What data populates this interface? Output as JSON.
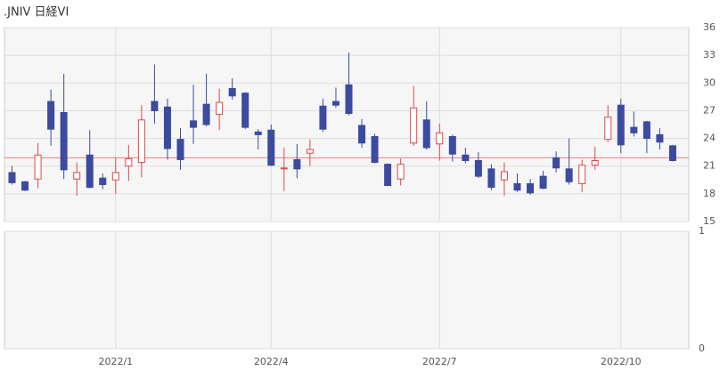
{
  "chart_data": {
    "type": "candlestick",
    "title": ".JNIV 日経VI",
    "categories": [
      null,
      null,
      null,
      null,
      null,
      null,
      null,
      null,
      "2022/1",
      null,
      null,
      null,
      null,
      null,
      null,
      null,
      null,
      null,
      null,
      null,
      "2022/4",
      null,
      null,
      null,
      null,
      null,
      null,
      null,
      null,
      null,
      null,
      null,
      null,
      "2022/7",
      null,
      null,
      null,
      null,
      null,
      null,
      null,
      null,
      null,
      null,
      null,
      null,
      null,
      "2022/10",
      null,
      null,
      null,
      null
    ],
    "open": [
      20.3,
      19.3,
      19.6,
      28,
      26.8,
      19.6,
      22.2,
      19.7,
      19.5,
      21.0,
      21.4,
      28,
      27.4,
      23.9,
      25.9,
      27.7,
      26.6,
      29.4,
      28.9,
      24.7,
      24.9,
      20.7,
      21.7,
      22.4,
      27.5,
      28,
      29.8,
      25.4,
      24.2,
      21.2,
      19.6,
      23.5,
      26,
      23.4,
      24.2,
      22.2,
      21.6,
      20.7,
      19.5,
      19.1,
      19.1,
      19.9,
      21.9,
      20.7,
      19.1,
      21.1,
      23.9,
      27.6,
      25.2,
      25.8,
      24.4,
      23.2
    ],
    "high": [
      21,
      19.4,
      23.5,
      29.3,
      31,
      21.4,
      24.9,
      20.2,
      21.9,
      23.3,
      27.6,
      32,
      28.3,
      25.1,
      29.8,
      31,
      29.4,
      30.5,
      29,
      25,
      25.5,
      23,
      23.4,
      23.9,
      28.3,
      29.5,
      33.3,
      26.1,
      24.5,
      21.3,
      21.8,
      29.7,
      28,
      25.6,
      24.4,
      23,
      22.5,
      21.2,
      21.4,
      20.2,
      19.6,
      20.5,
      22.6,
      24,
      21.7,
      23.1,
      27.6,
      28.3,
      26.9,
      25.9,
      25.1,
      23.3
    ],
    "low": [
      19,
      18.3,
      18.6,
      23.2,
      19.6,
      17.8,
      18.6,
      18.5,
      18,
      19.4,
      19.8,
      25.6,
      21.7,
      20.6,
      23.4,
      25.3,
      24.9,
      28.2,
      25,
      22.8,
      21,
      18.3,
      19.7,
      21,
      24.7,
      27.3,
      26.5,
      23,
      21.3,
      18.9,
      18.9,
      23.2,
      22.8,
      21.6,
      21.5,
      21.3,
      19.7,
      18.4,
      17.8,
      18.2,
      17.9,
      18.5,
      20.3,
      19,
      18.2,
      20.6,
      23.6,
      22.4,
      24.2,
      22.4,
      22.8,
      21.5
    ],
    "close": [
      19.2,
      18.4,
      22.2,
      25,
      20.6,
      20.3,
      18.7,
      19.0,
      20.3,
      21.8,
      26,
      27,
      22.9,
      21.7,
      25.2,
      25.5,
      27.9,
      28.6,
      25.2,
      24.4,
      21.1,
      20.8,
      20.7,
      22.8,
      25,
      27.6,
      26.7,
      23.5,
      21.4,
      18.9,
      21.2,
      27.3,
      23,
      24.6,
      22.3,
      21.6,
      19.9,
      18.7,
      20.4,
      18.4,
      18.1,
      18.6,
      20.8,
      19.3,
      21.1,
      21.6,
      26.3,
      23.3,
      24.6,
      24,
      23.6,
      21.6
    ],
    "up_color": "#e04848",
    "down_color": "#3b4ba0",
    "ylim": [
      15,
      36
    ],
    "yticks": [
      15,
      18,
      21,
      24,
      27,
      30,
      33,
      36
    ],
    "reference_line": 21.9,
    "reference_color": "#f08080",
    "sub_ylim": [
      0,
      1
    ],
    "sub_yticks": [
      0,
      1
    ],
    "grid": true
  }
}
